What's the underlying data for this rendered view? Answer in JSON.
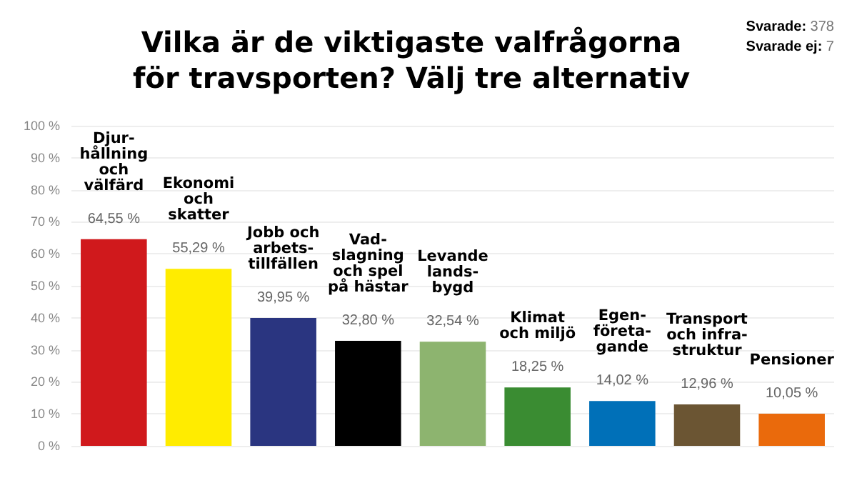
{
  "chart_data": {
    "type": "bar",
    "title": "Vilka är de viktigaste valfrågorna\nför travsporten? Välj tre alternativ",
    "annotations": [
      "Svarade: 378",
      "Svarade ej: 7"
    ],
    "categories": [
      "Djur-\nhållning\noch\nvälfärd",
      "Ekonomi\noch\nskatter",
      "Jobb och\narbets-\ntillfällen",
      "Vad-\nslagning\noch spel\npå hästar",
      "Levande\nlands-\nbygd",
      "Klimat\noch miljö",
      "Egen-\nföreta-\ngande",
      "Transport\noch infra-\nstruktur",
      "Pensioner"
    ],
    "values": [
      64.55,
      55.29,
      39.95,
      32.8,
      32.54,
      18.25,
      14.02,
      12.96,
      10.05
    ],
    "value_labels": [
      "64,55 %",
      "55,29 %",
      "39,95 %",
      "32,80 %",
      "32,54 %",
      "18,25 %",
      "14,02 %",
      "12,96 %",
      "10,05 %"
    ],
    "colors": [
      "#d0191c",
      "#ffec00",
      "#2a3580",
      "#000000",
      "#8db46f",
      "#3a8c32",
      "#0070b8",
      "#6b5533",
      "#ea6a0c"
    ],
    "ylim": [
      0,
      100
    ],
    "yticks": [
      {
        "value": 0,
        "label": "0 %"
      },
      {
        "value": 10,
        "label": "10 %"
      },
      {
        "value": 20,
        "label": "20 %"
      },
      {
        "value": 30,
        "label": "30 %"
      },
      {
        "value": 40,
        "label": "40 %"
      },
      {
        "value": 50,
        "label": "50 %"
      },
      {
        "value": 60,
        "label": "60 %"
      },
      {
        "value": 70,
        "label": "70 %"
      },
      {
        "value": 80,
        "label": "80 %"
      },
      {
        "value": 90,
        "label": "90 %"
      },
      {
        "value": 100,
        "label": "100 %"
      }
    ],
    "grid": "y",
    "tick_labels": "y"
  }
}
